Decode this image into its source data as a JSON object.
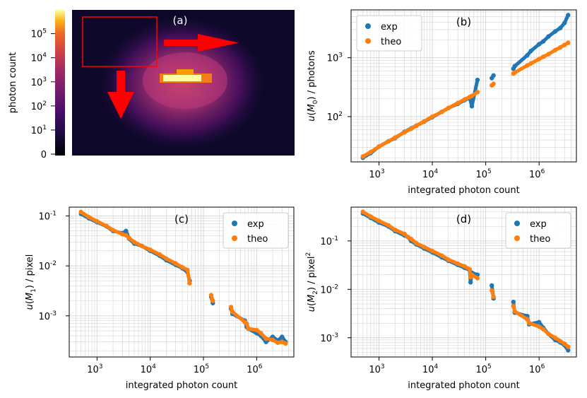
{
  "colors": {
    "exp": "#1f77b4",
    "theo": "#ff7f0e",
    "arrow": "#ff0000",
    "grid": "#d3d3d3"
  },
  "chart_data": [
    {
      "id": "a",
      "type": "heatmap",
      "panel_label": "(a)",
      "colorbar": {
        "label": "photon count",
        "scale": "symlog",
        "colormap": "inferno",
        "range": [
          0,
          500000
        ],
        "ticks": [
          "0",
          "10^1",
          "10^2",
          "10^3",
          "10^4",
          "10^5"
        ]
      },
      "annotations": [
        "background region (rectangle)",
        "arrow right",
        "arrow down"
      ]
    },
    {
      "id": "b",
      "type": "scatter",
      "panel_label": "(b)",
      "xscale": "log",
      "yscale": "log",
      "xlim": [
        300,
        5000000
      ],
      "ylim": [
        17,
        6500
      ],
      "xticks": [
        1000,
        10000,
        100000,
        1000000
      ],
      "yticks": [
        100,
        1000
      ],
      "xlabel": "integrated photon count",
      "ylabel": "u(M_0) / photons",
      "legend": [
        "exp",
        "theo"
      ],
      "legend_loc": "upper left",
      "series": [
        {
          "name": "exp",
          "x": [
            500,
            700,
            1000,
            1500,
            2000,
            3000,
            4000,
            5000,
            7000,
            10000,
            15000,
            20000,
            30000,
            40000,
            50000,
            55000,
            70000,
            130000,
            140000,
            330000,
            350000,
            600000,
            700000,
            1000000,
            1200000,
            1500000,
            2000000,
            2500000,
            3000000,
            3500000
          ],
          "y": [
            20,
            24,
            31,
            38,
            43,
            55,
            63,
            70,
            82,
            98,
            120,
            140,
            165,
            190,
            210,
            150,
            420,
            450,
            500,
            650,
            720,
            1100,
            1300,
            1700,
            1900,
            2300,
            2800,
            3200,
            3900,
            5300
          ]
        },
        {
          "name": "theo",
          "x": [
            500,
            700,
            1000,
            1500,
            2000,
            3000,
            4000,
            5000,
            7000,
            10000,
            15000,
            20000,
            30000,
            40000,
            50000,
            55000,
            70000,
            130000,
            140000,
            330000,
            350000,
            600000,
            700000,
            1000000,
            1200000,
            1500000,
            2000000,
            2500000,
            3000000,
            3500000
          ],
          "y": [
            21,
            25,
            31,
            38,
            44,
            54,
            62,
            70,
            83,
            100,
            120,
            140,
            170,
            195,
            215,
            225,
            260,
            340,
            360,
            540,
            560,
            740,
            800,
            950,
            1040,
            1150,
            1350,
            1500,
            1650,
            1800
          ]
        }
      ]
    },
    {
      "id": "c",
      "type": "scatter",
      "panel_label": "(c)",
      "xscale": "log",
      "yscale": "log",
      "xlim": [
        300,
        5000000
      ],
      "ylim": [
        0.00015,
        0.15
      ],
      "xticks": [
        1000,
        10000,
        100000,
        1000000
      ],
      "yticks": [
        0.001,
        0.01,
        0.1
      ],
      "xlabel": "integrated photon count",
      "ylabel": "u(M_1) / pixel",
      "legend": [
        "exp",
        "theo"
      ],
      "legend_loc": "upper right",
      "series": [
        {
          "name": "exp",
          "x": [
            500,
            700,
            1000,
            1500,
            2000,
            3000,
            3500,
            4000,
            5000,
            7000,
            10000,
            15000,
            20000,
            30000,
            40000,
            50000,
            55000,
            140000,
            150000,
            330000,
            350000,
            600000,
            650000,
            700000,
            1000000,
            1200000,
            1500000,
            2000000,
            2500000,
            3000000,
            3500000
          ],
          "y": [
            0.11,
            0.09,
            0.075,
            0.062,
            0.05,
            0.045,
            0.05,
            0.035,
            0.028,
            0.025,
            0.02,
            0.016,
            0.013,
            0.0105,
            0.009,
            0.0075,
            0.005,
            0.0024,
            0.0018,
            0.0014,
            0.0011,
            0.0008,
            0.0006,
            0.00055,
            0.00045,
            0.0004,
            0.0003,
            0.00038,
            0.00032,
            0.00038,
            0.0003
          ]
        },
        {
          "name": "theo",
          "x": [
            500,
            700,
            1000,
            1500,
            2000,
            3000,
            3500,
            4000,
            5000,
            7000,
            10000,
            15000,
            20000,
            30000,
            40000,
            50000,
            55000,
            140000,
            150000,
            330000,
            350000,
            600000,
            650000,
            700000,
            1000000,
            1200000,
            1500000,
            2000000,
            2500000,
            3000000,
            3500000
          ],
          "y": [
            0.12,
            0.095,
            0.078,
            0.063,
            0.052,
            0.043,
            0.041,
            0.036,
            0.03,
            0.025,
            0.021,
            0.017,
            0.014,
            0.0112,
            0.0094,
            0.0083,
            0.0045,
            0.0026,
            0.002,
            0.0015,
            0.0012,
            0.00075,
            0.0007,
            0.00055,
            0.00052,
            0.00045,
            0.00035,
            0.00033,
            0.00029,
            0.0003,
            0.00028
          ]
        }
      ]
    },
    {
      "id": "d",
      "type": "scatter",
      "panel_label": "(d)",
      "xscale": "log",
      "yscale": "log",
      "xlim": [
        300,
        5000000
      ],
      "ylim": [
        0.0004,
        0.5
      ],
      "xticks": [
        1000,
        10000,
        100000,
        1000000
      ],
      "yticks": [
        0.001,
        0.01,
        0.1
      ],
      "xlabel": "integrated photon count",
      "ylabel": "u(M_2) / pixel^2",
      "legend": [
        "exp",
        "theo"
      ],
      "legend_loc": "upper right",
      "series": [
        {
          "name": "exp",
          "x": [
            500,
            700,
            1000,
            1500,
            2000,
            3000,
            3500,
            4000,
            5000,
            7000,
            10000,
            15000,
            20000,
            30000,
            40000,
            50000,
            52000,
            55000,
            70000,
            130000,
            140000,
            330000,
            350000,
            600000,
            650000,
            1000000,
            1200000,
            1500000,
            2000000,
            2500000,
            3000000,
            3500000
          ],
          "y": [
            0.37,
            0.3,
            0.24,
            0.2,
            0.16,
            0.13,
            0.12,
            0.1,
            0.085,
            0.07,
            0.058,
            0.046,
            0.039,
            0.032,
            0.028,
            0.025,
            0.014,
            0.022,
            0.02,
            0.012,
            0.0065,
            0.0055,
            0.0033,
            0.0028,
            0.0019,
            0.0021,
            0.0016,
            0.0012,
            0.0009,
            0.0008,
            0.0007,
            0.00055
          ]
        },
        {
          "name": "theo",
          "x": [
            500,
            700,
            1000,
            1500,
            2000,
            3000,
            3500,
            4000,
            5000,
            7000,
            10000,
            15000,
            20000,
            30000,
            40000,
            50000,
            52000,
            55000,
            70000,
            130000,
            140000,
            330000,
            350000,
            600000,
            650000,
            1000000,
            1200000,
            1500000,
            2000000,
            2500000,
            3000000,
            3500000
          ],
          "y": [
            0.4,
            0.32,
            0.26,
            0.21,
            0.17,
            0.14,
            0.12,
            0.11,
            0.09,
            0.075,
            0.062,
            0.05,
            0.041,
            0.034,
            0.03,
            0.026,
            0.018,
            0.02,
            0.017,
            0.0095,
            0.007,
            0.0045,
            0.0035,
            0.0024,
            0.002,
            0.0017,
            0.0015,
            0.0012,
            0.001,
            0.00085,
            0.00075,
            0.00065
          ]
        }
      ]
    }
  ]
}
